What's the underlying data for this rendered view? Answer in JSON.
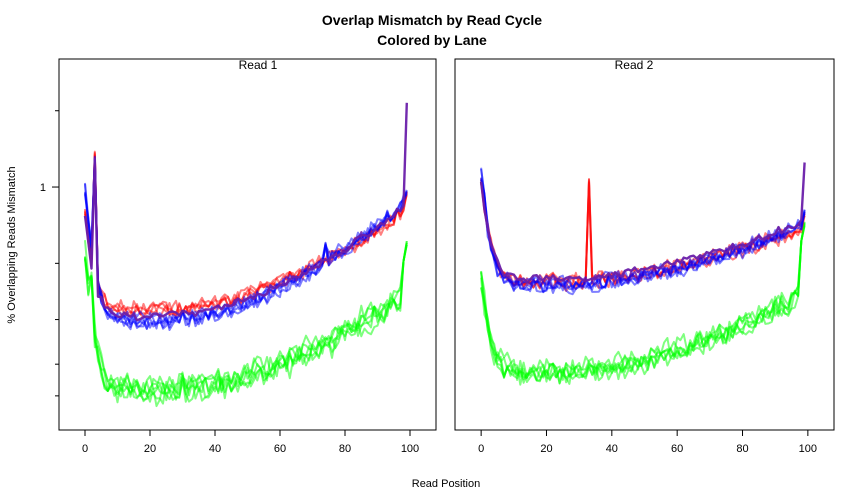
{
  "chart_data": {
    "type": "line",
    "title": "Overlap Mismatch by Read Cycle",
    "subtitle": "Colored by Lane",
    "xlabel": "Read Position",
    "ylabel": "% Overlapping Reads Mismatch",
    "y_scale": "log",
    "xlim": [
      -8,
      108
    ],
    "ylim": [
      0.11,
      3.2
    ],
    "x_ticks": [
      "0",
      "20",
      "40",
      "60",
      "80",
      "100"
    ],
    "y_tick_label": "1",
    "y_minor_ticks": [
      0.15,
      0.2,
      0.3,
      0.5,
      2
    ],
    "lane_colors": {
      "red": "#ff0000",
      "blue": "#0000ff",
      "purple": "#6a1faa",
      "green": "#00ff00"
    },
    "panels": [
      {
        "label": "Read 1",
        "series": [
          {
            "color": "red",
            "lines": 4,
            "v0": 0.46,
            "vmin": 0.33,
            "vend": 0.8,
            "shift": 0.0,
            "noise": 0.055,
            "spikes": [
              {
                "x": 3,
                "v": 1.35
              }
            ]
          },
          {
            "color": "blue",
            "lines": 5,
            "v0": 0.7,
            "vmin": 0.3,
            "vend": 0.86,
            "shift": -0.02,
            "noise": 0.06,
            "spikes": [
              {
                "x": 3,
                "v": 1.3
              },
              {
                "x": 74,
                "v": 0.6
              }
            ]
          },
          {
            "color": "purple",
            "lines": 1,
            "v0": 0.46,
            "vmin": 0.31,
            "vend": 0.84,
            "shift": 0.0,
            "noise": 0.03,
            "spikes": [
              {
                "x": 3,
                "v": 1.3
              }
            ]
          },
          {
            "color": "green",
            "lines": 6,
            "v0": 0.4,
            "vmin": 0.165,
            "vend": 0.38,
            "shift": -0.08,
            "noise": 0.09,
            "spikes": [
              {
                "x": 2,
                "v": 0.45
              }
            ]
          }
        ],
        "end_values": {
          "red": 0.95,
          "blue": 0.96,
          "purple": 2.15,
          "green": 0.6
        }
      },
      {
        "label": "Read 2",
        "series": [
          {
            "color": "red",
            "lines": 4,
            "v0": 0.66,
            "vmin": 0.42,
            "vend": 0.68,
            "shift": 0.0,
            "noise": 0.06,
            "spikes": [
              {
                "x": 33,
                "v": 1.05
              }
            ]
          },
          {
            "color": "blue",
            "lines": 5,
            "v0": 0.68,
            "vmin": 0.41,
            "vend": 0.7,
            "shift": -0.02,
            "noise": 0.06,
            "spikes": [
              {
                "x": 1,
                "v": 0.93
              }
            ]
          },
          {
            "color": "purple",
            "lines": 1,
            "v0": 0.6,
            "vmin": 0.43,
            "vend": 0.72,
            "shift": 0.0,
            "noise": 0.03,
            "spikes": []
          },
          {
            "color": "green",
            "lines": 6,
            "v0": 0.26,
            "vmin": 0.19,
            "vend": 0.38,
            "shift": -0.07,
            "noise": 0.08,
            "spikes": []
          }
        ],
        "end_values": {
          "red": 0.78,
          "blue": 0.8,
          "purple": 1.25,
          "green": 0.72
        }
      }
    ]
  }
}
